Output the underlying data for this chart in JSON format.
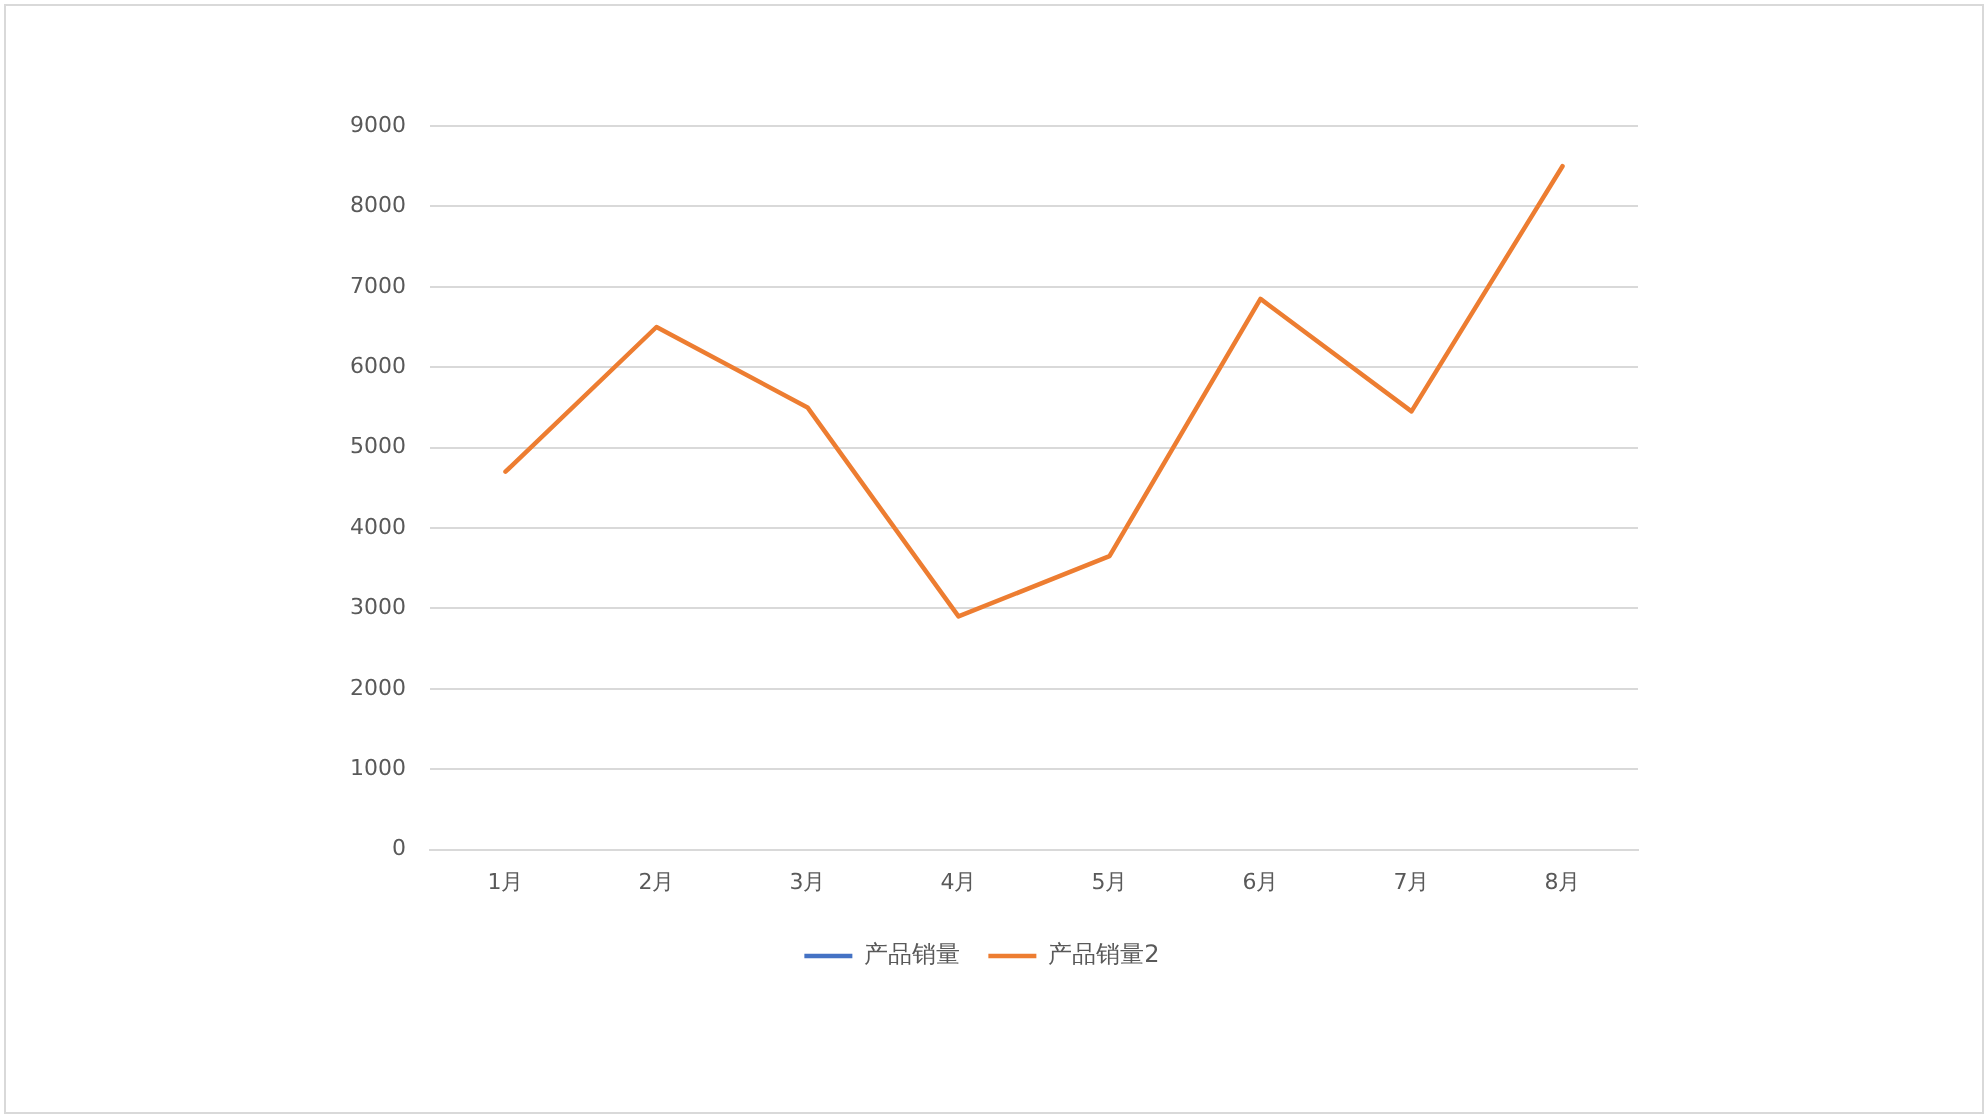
{
  "chart_data": {
    "type": "line",
    "categories": [
      "1月",
      "2月",
      "3月",
      "4月",
      "5月",
      "6月",
      "7月",
      "8月"
    ],
    "series": [
      {
        "name": "产品销量",
        "color": "#4472c4",
        "values": [
          null,
          null,
          null,
          null,
          null,
          null,
          null,
          null
        ]
      },
      {
        "name": "产品销量2",
        "color": "#ed7d31",
        "values": [
          4700,
          6500,
          5500,
          2900,
          3650,
          6850,
          5450,
          8500
        ]
      }
    ],
    "ylim": [
      0,
      9000
    ],
    "yticks": [
      0,
      1000,
      2000,
      3000,
      4000,
      5000,
      6000,
      7000,
      8000,
      9000
    ],
    "grid": "y",
    "legend": "bottom",
    "marker": "none",
    "line_style": "solid"
  }
}
